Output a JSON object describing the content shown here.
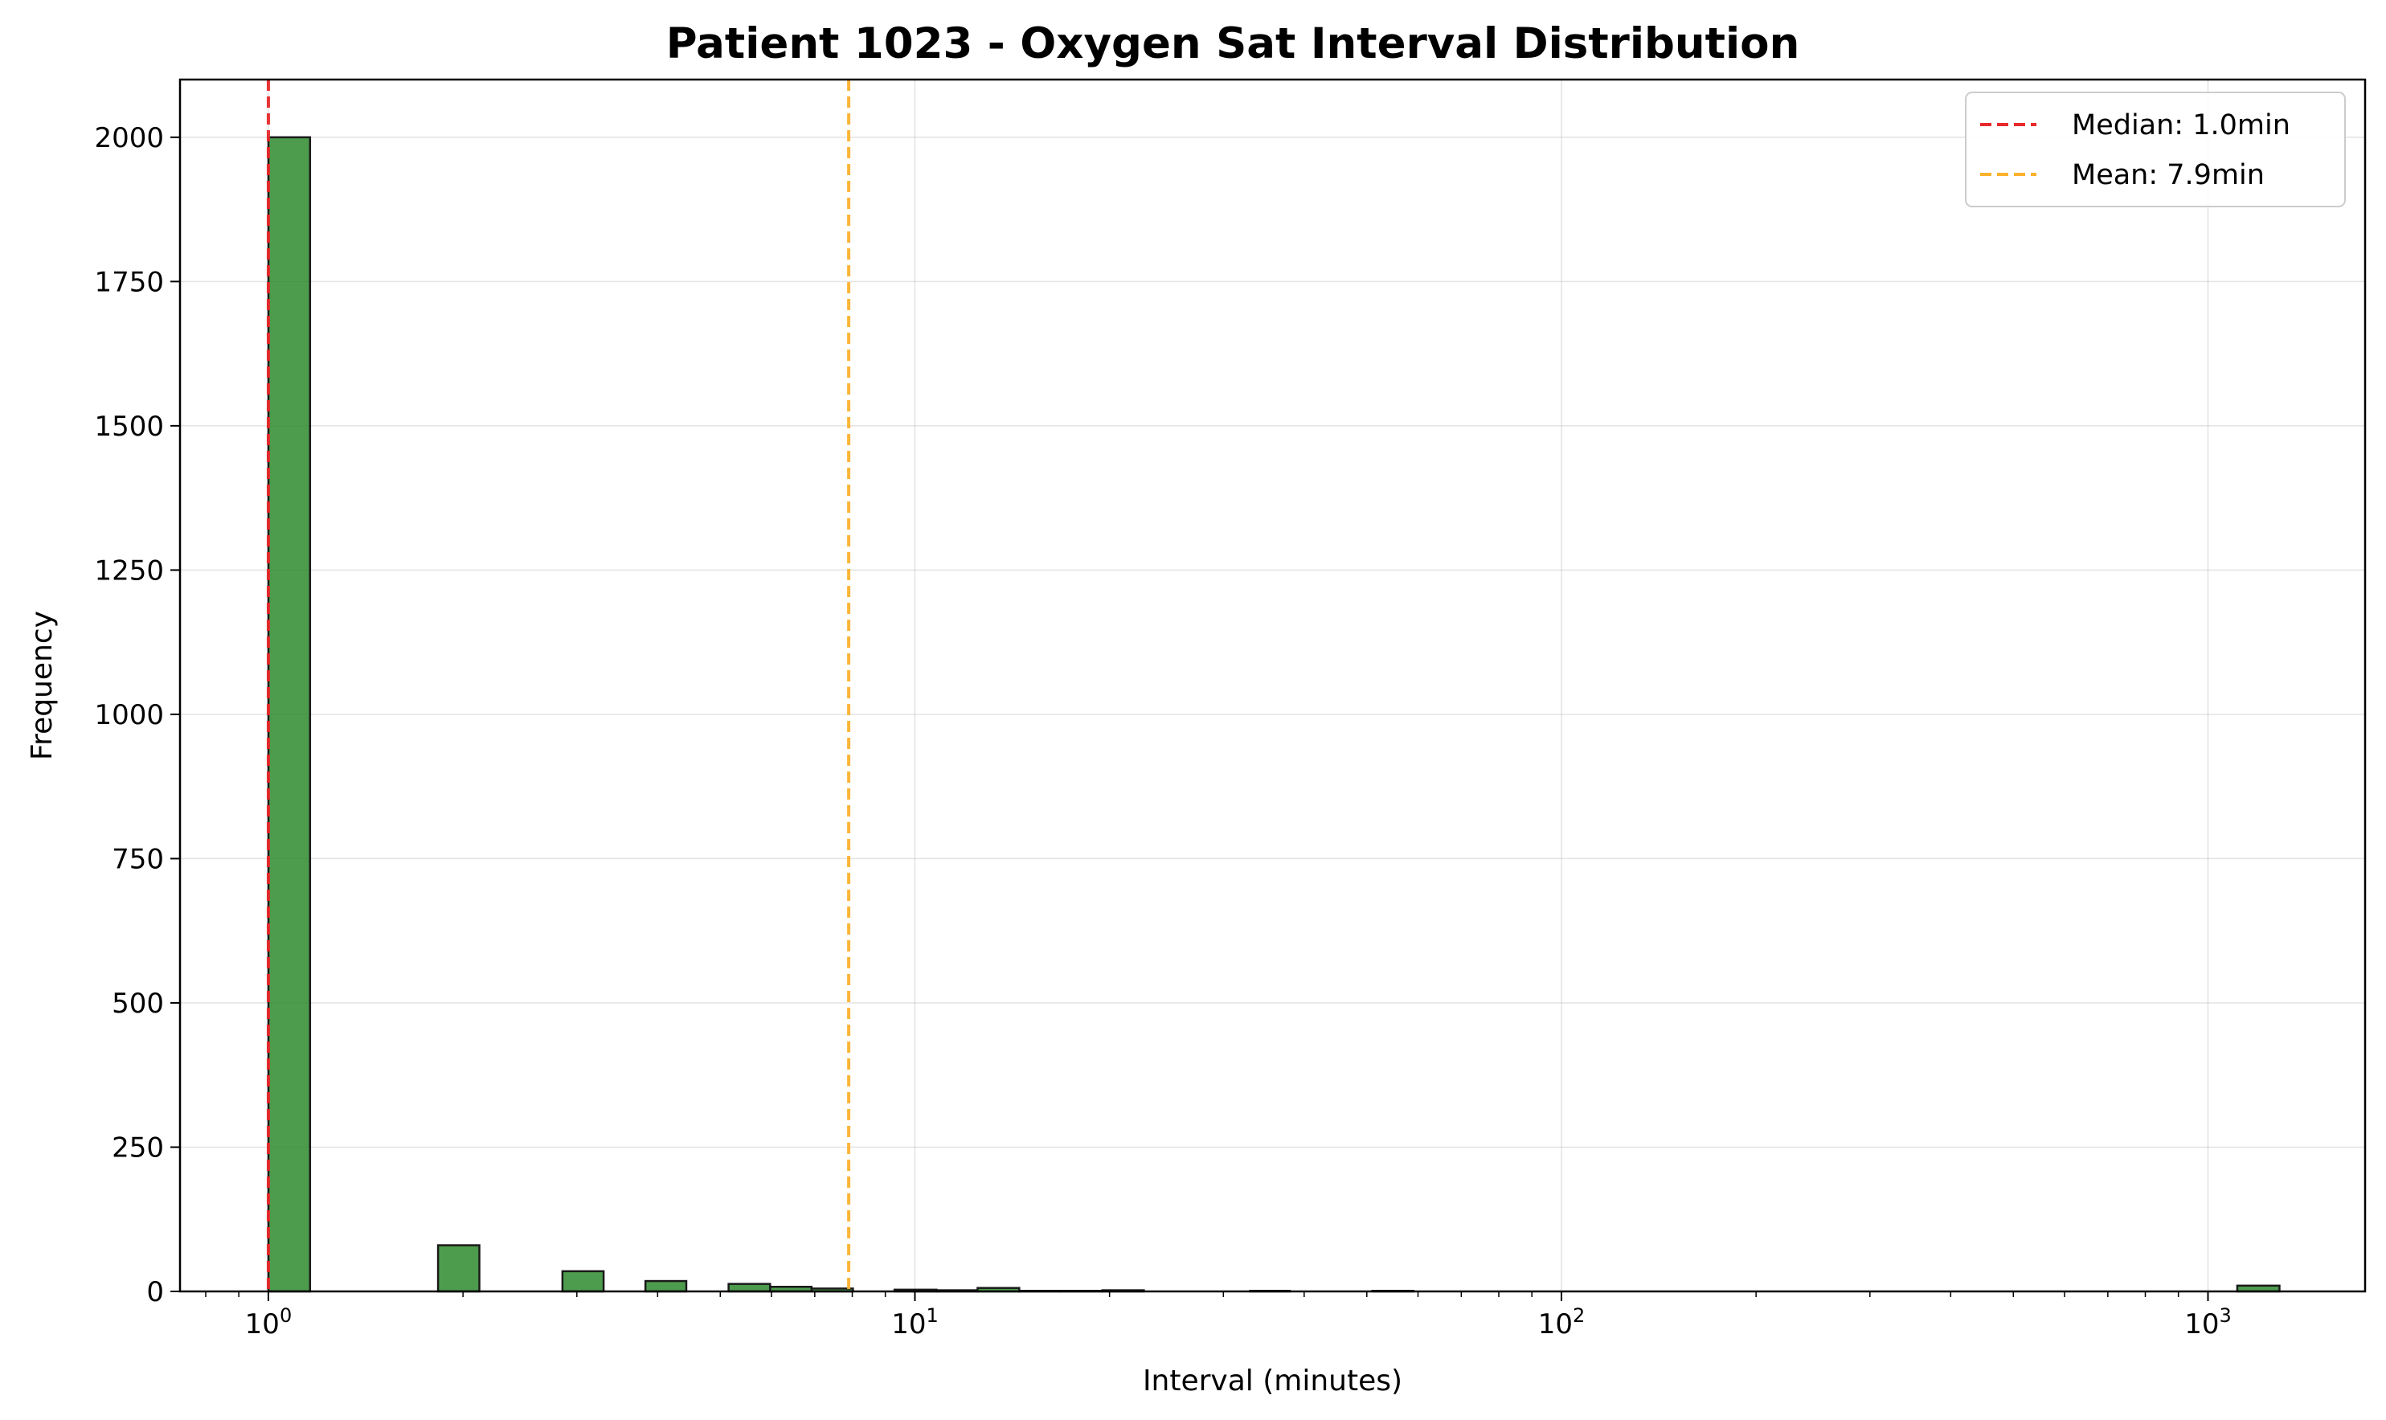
{
  "chart_data": {
    "type": "bar",
    "title": "Patient 1023 - Oxygen Sat Interval Distribution",
    "xlabel": "Interval (minutes)",
    "ylabel": "Frequency",
    "xscale": "log",
    "xlim": [
      0.73,
      1750
    ],
    "ylim": [
      0,
      2100
    ],
    "yticks": [
      0,
      250,
      500,
      750,
      1000,
      1250,
      1500,
      1750,
      2000
    ],
    "xticks": [
      {
        "value": 1,
        "base": "10",
        "exp": "0"
      },
      {
        "value": 10,
        "base": "10",
        "exp": "1"
      },
      {
        "value": 100,
        "base": "10",
        "exp": "2"
      },
      {
        "value": 1000,
        "base": "10",
        "exp": "3"
      }
    ],
    "grid": true,
    "bar_color": "#2e8b2e",
    "bar_edge_color": "#1a1a1a",
    "bars": [
      {
        "x0": 1.0,
        "x1": 1.16,
        "y": 2000
      },
      {
        "x0": 1.83,
        "x1": 2.12,
        "y": 80
      },
      {
        "x0": 2.85,
        "x1": 3.3,
        "y": 35
      },
      {
        "x0": 3.83,
        "x1": 4.43,
        "y": 18
      },
      {
        "x0": 5.15,
        "x1": 5.97,
        "y": 13
      },
      {
        "x0": 5.97,
        "x1": 6.92,
        "y": 8
      },
      {
        "x0": 6.92,
        "x1": 8.02,
        "y": 5
      },
      {
        "x0": 9.3,
        "x1": 10.8,
        "y": 3
      },
      {
        "x0": 10.8,
        "x1": 12.5,
        "y": 2
      },
      {
        "x0": 12.5,
        "x1": 14.5,
        "y": 6
      },
      {
        "x0": 14.5,
        "x1": 16.8,
        "y": 1
      },
      {
        "x0": 16.8,
        "x1": 19.5,
        "y": 1
      },
      {
        "x0": 19.5,
        "x1": 22.6,
        "y": 2
      },
      {
        "x0": 33,
        "x1": 38,
        "y": 1
      },
      {
        "x0": 51,
        "x1": 59,
        "y": 1
      },
      {
        "x0": 1110,
        "x1": 1290,
        "y": 10
      }
    ],
    "reference_lines": [
      {
        "name": "Median: 1.0min",
        "value": 1.0,
        "color": "#e8292b",
        "style": "dashed"
      },
      {
        "name": "Mean: 7.9min",
        "value": 7.9,
        "color": "#fbb22e",
        "style": "dashed"
      }
    ],
    "legend_position": "upper right"
  }
}
